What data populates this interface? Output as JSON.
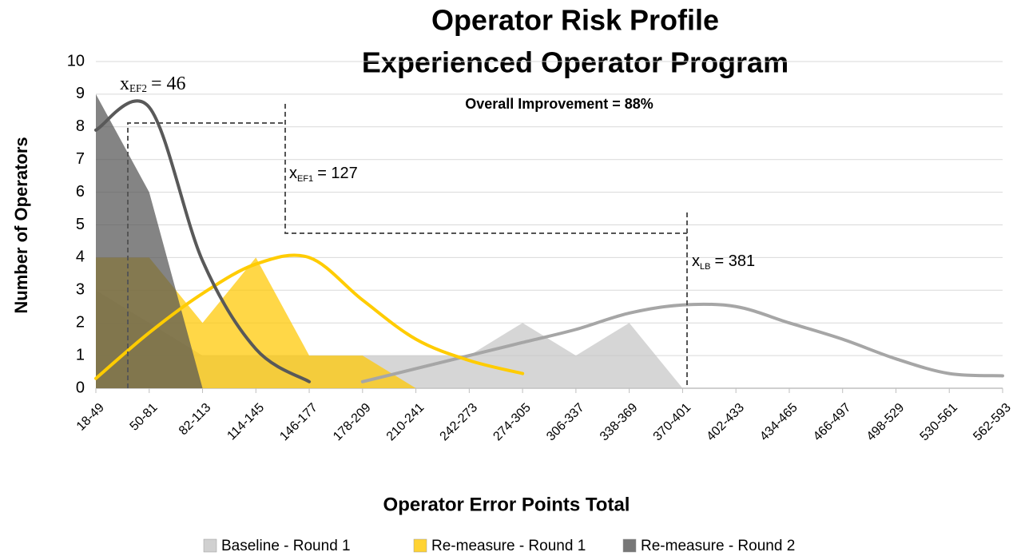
{
  "chart_data": {
    "type": "area",
    "title": "Operator Risk Profile",
    "subtitle": "Experienced Operator Program",
    "note": "Overall Improvement = 88%",
    "x_label": "Operator Error Points Total",
    "y_label": "Number of Operators",
    "categories": [
      "18-49",
      "50-81",
      "82-113",
      "114-145",
      "146-177",
      "178-209",
      "210-241",
      "242-273",
      "274-305",
      "306-337",
      "338-369",
      "370-401",
      "402-433",
      "434-465",
      "466-497",
      "498-529",
      "530-561",
      "562-593"
    ],
    "series": [
      {
        "name": "Baseline - Round 1",
        "color": "#c4c4c4",
        "values": [
          3,
          2,
          1,
          1,
          1,
          1,
          1,
          1,
          2,
          1,
          2,
          0,
          0,
          0,
          0,
          0,
          0,
          0
        ]
      },
      {
        "name": "Re-measure - Round 1",
        "color": "#ffc800",
        "values": [
          4,
          4,
          2,
          4,
          1,
          1,
          0,
          0,
          0,
          0,
          0,
          0,
          0,
          0,
          0,
          0,
          0,
          0
        ]
      },
      {
        "name": "Re-measure - Round 2",
        "color": "#555555",
        "values": [
          9,
          6,
          0,
          0,
          0,
          0,
          0,
          0,
          0,
          0,
          0,
          0,
          0,
          0,
          0,
          0,
          0,
          0
        ]
      }
    ],
    "curves": [
      {
        "color": "#a6a6a6",
        "values": [
          null,
          null,
          null,
          null,
          null,
          0.2,
          0.6,
          1.0,
          1.4,
          1.8,
          2.3,
          2.55,
          2.5,
          2.0,
          1.5,
          0.9,
          0.45,
          0.38
        ]
      },
      {
        "color": "#ffcc00",
        "values": [
          0.3,
          1.7,
          2.9,
          3.8,
          4.0,
          2.7,
          1.5,
          0.85,
          0.45,
          null,
          null,
          null,
          null,
          null,
          null,
          null,
          null,
          null
        ]
      },
      {
        "color": "#595959",
        "values": [
          7.9,
          8.6,
          3.9,
          1.2,
          0.2,
          null,
          null,
          null,
          null,
          null,
          null,
          null,
          null,
          null,
          null,
          null,
          null,
          null
        ]
      }
    ],
    "annotations": [
      {
        "symbol": "x",
        "sub": "EF2",
        "text": "= 46"
      },
      {
        "symbol": "x",
        "sub": "EF1",
        "text": "= 127"
      },
      {
        "symbol": "x",
        "sub": "LB",
        "text": "= 381"
      }
    ],
    "ylim": [
      0,
      10
    ],
    "yticks": [
      0,
      1,
      2,
      3,
      4,
      5,
      6,
      7,
      8,
      9,
      10
    ],
    "grid": true
  }
}
